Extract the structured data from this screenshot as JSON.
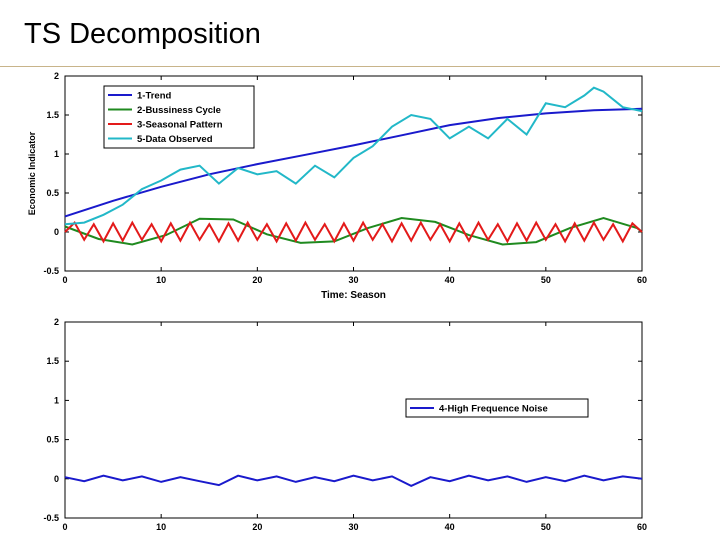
{
  "slide": {
    "title": "TS Decomposition"
  },
  "chart_data": [
    {
      "type": "line",
      "xlabel": "Time: Season",
      "ylabel": "Economic Indicator",
      "xlim": [
        0,
        60
      ],
      "ylim": [
        -0.5,
        2
      ],
      "xticks": [
        0,
        10,
        20,
        30,
        40,
        50,
        60
      ],
      "yticks": [
        -0.5,
        0,
        0.5,
        1,
        1.5,
        2
      ],
      "ytick_labels": [
        "-0.5",
        "0",
        "0.5",
        "1",
        "1.5",
        "2"
      ],
      "legend_position": "top-left",
      "grid": false,
      "series": [
        {
          "name": "1-Trend",
          "color": "#1a1acc",
          "x": [
            0,
            5,
            10,
            15,
            20,
            25,
            30,
            35,
            40,
            45,
            50,
            55,
            60
          ],
          "y": [
            0.2,
            0.4,
            0.58,
            0.74,
            0.87,
            0.99,
            1.11,
            1.24,
            1.37,
            1.46,
            1.52,
            1.56,
            1.58
          ]
        },
        {
          "name": "2-Bussiness Cycle",
          "color": "#1f8a1f",
          "x": [
            0,
            3.5,
            7,
            10.5,
            14,
            17.5,
            21,
            24.5,
            28,
            31.5,
            35,
            38.5,
            42,
            45.5,
            49,
            52.5,
            56,
            59.5,
            60
          ],
          "y": [
            0.07,
            -0.09,
            -0.16,
            -0.04,
            0.17,
            0.16,
            -0.03,
            -0.14,
            -0.12,
            0.05,
            0.18,
            0.13,
            -0.04,
            -0.16,
            -0.13,
            0.05,
            0.18,
            0.05,
            0
          ]
        },
        {
          "name": "3-Seasonal Pattern",
          "color": "#e31a1a",
          "x": [
            0,
            1,
            2,
            3,
            4,
            5,
            6,
            7,
            8,
            9,
            10,
            11,
            12,
            13,
            14,
            15,
            16,
            17,
            18,
            19,
            20,
            21,
            22,
            23,
            24,
            25,
            26,
            27,
            28,
            29,
            30,
            31,
            32,
            33,
            34,
            35,
            36,
            37,
            38,
            39,
            40,
            41,
            42,
            43,
            44,
            45,
            46,
            47,
            48,
            49,
            50,
            51,
            52,
            53,
            54,
            55,
            56,
            57,
            58,
            59,
            60
          ],
          "y": [
            0,
            0.12,
            -0.1,
            0.1,
            -0.12,
            0.11,
            -0.11,
            0.12,
            -0.1,
            0.1,
            -0.12,
            0.11,
            -0.11,
            0.12,
            -0.1,
            0.1,
            -0.12,
            0.11,
            -0.11,
            0.12,
            -0.1,
            0.1,
            -0.12,
            0.11,
            -0.11,
            0.12,
            -0.1,
            0.1,
            -0.12,
            0.11,
            -0.11,
            0.12,
            -0.1,
            0.1,
            -0.12,
            0.11,
            -0.11,
            0.12,
            -0.1,
            0.1,
            -0.12,
            0.11,
            -0.11,
            0.12,
            -0.1,
            0.1,
            -0.12,
            0.11,
            -0.11,
            0.12,
            -0.1,
            0.1,
            -0.12,
            0.11,
            -0.11,
            0.12,
            -0.1,
            0.1,
            -0.12,
            0.11,
            0
          ]
        },
        {
          "name": "5-Data Observed",
          "color": "#22b8c8",
          "x": [
            0,
            2,
            4,
            6,
            8,
            10,
            12,
            14,
            16,
            18,
            20,
            22,
            24,
            26,
            28,
            30,
            32,
            34,
            36,
            38,
            40,
            42,
            44,
            46,
            48,
            50,
            52,
            54,
            55,
            56,
            58,
            60
          ],
          "y": [
            0.1,
            0.12,
            0.22,
            0.35,
            0.55,
            0.66,
            0.8,
            0.85,
            0.62,
            0.82,
            0.74,
            0.78,
            0.62,
            0.85,
            0.7,
            0.95,
            1.1,
            1.35,
            1.5,
            1.45,
            1.2,
            1.35,
            1.2,
            1.45,
            1.25,
            1.65,
            1.6,
            1.75,
            1.85,
            1.8,
            1.6,
            1.55
          ]
        }
      ]
    },
    {
      "type": "line",
      "xlim": [
        0,
        60
      ],
      "ylim": [
        -0.5,
        2
      ],
      "xticks": [
        0,
        10,
        20,
        30,
        40,
        50,
        60
      ],
      "yticks": [
        -0.5,
        0,
        0.5,
        1,
        1.5,
        2
      ],
      "ytick_labels": [
        "-0.5",
        "0",
        "0.5",
        "1",
        "1.5",
        "2"
      ],
      "legend_position": "right",
      "grid": false,
      "series": [
        {
          "name": "4-High Frequence Noise",
          "color": "#1a1acc",
          "x": [
            0,
            2,
            4,
            6,
            8,
            10,
            12,
            14,
            16,
            18,
            20,
            22,
            24,
            26,
            28,
            30,
            32,
            34,
            36,
            38,
            40,
            42,
            44,
            46,
            48,
            50,
            52,
            54,
            56,
            58,
            60
          ],
          "y": [
            0.02,
            -0.03,
            0.04,
            -0.02,
            0.03,
            -0.04,
            0.02,
            -0.03,
            -0.08,
            0.04,
            -0.02,
            0.03,
            -0.04,
            0.02,
            -0.03,
            0.04,
            -0.02,
            0.03,
            -0.09,
            0.02,
            -0.03,
            0.04,
            -0.02,
            0.03,
            -0.04,
            0.02,
            -0.03,
            0.04,
            -0.02,
            0.03,
            0
          ]
        }
      ]
    }
  ]
}
